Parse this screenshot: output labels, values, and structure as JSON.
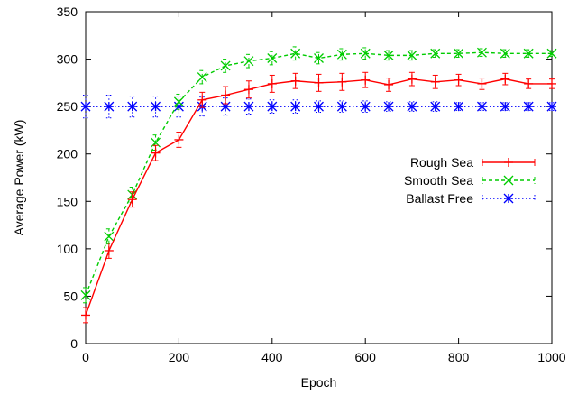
{
  "chart_data": {
    "type": "line",
    "xlabel": "Epoch",
    "ylabel": "Average Power (kW)",
    "xlim": [
      0,
      1000
    ],
    "ylim": [
      0,
      350
    ],
    "xticks": [
      0,
      200,
      400,
      600,
      800,
      1000
    ],
    "yticks": [
      0,
      50,
      100,
      150,
      200,
      250,
      300,
      350
    ],
    "grid": false,
    "legend_position": "right",
    "x": [
      0,
      50,
      100,
      150,
      200,
      250,
      300,
      350,
      400,
      450,
      500,
      550,
      600,
      650,
      700,
      750,
      800,
      850,
      900,
      950,
      1000
    ],
    "series": [
      {
        "name": "Rough Sea",
        "color": "#ff0000",
        "marker": "plus",
        "dash": "solid",
        "values": [
          30,
          98,
          152,
          201,
          215,
          257,
          262,
          268,
          274,
          277,
          275,
          276,
          278,
          273,
          279,
          276,
          278,
          274,
          279,
          274,
          274
        ],
        "errors": [
          8,
          8,
          8,
          8,
          8,
          8,
          9,
          9,
          9,
          8,
          9,
          9,
          8,
          7,
          7,
          7,
          6,
          6,
          6,
          5,
          5
        ]
      },
      {
        "name": "Smooth Sea",
        "color": "#00cc00",
        "marker": "x",
        "dash": "dashed",
        "values": [
          51,
          113,
          157,
          212,
          255,
          281,
          293,
          298,
          301,
          306,
          301,
          305,
          306,
          304,
          304,
          306,
          306,
          307,
          306,
          306,
          306
        ],
        "errors": [
          8,
          8,
          8,
          8,
          8,
          7,
          7,
          7,
          7,
          7,
          6,
          6,
          6,
          5,
          5,
          4,
          4,
          4,
          4,
          4,
          3
        ]
      },
      {
        "name": "Ballast Free",
        "color": "#0000ff",
        "marker": "star",
        "dash": "dotted",
        "values": [
          250,
          250,
          250,
          250,
          250,
          250,
          250,
          250,
          250,
          250,
          250,
          250,
          250,
          250,
          250,
          250,
          250,
          250,
          250,
          250,
          250
        ],
        "errors": [
          12,
          12,
          11,
          11,
          11,
          10,
          9,
          8,
          7,
          7,
          6,
          6,
          6,
          5,
          5,
          5,
          4,
          4,
          4,
          4,
          4
        ]
      }
    ]
  }
}
